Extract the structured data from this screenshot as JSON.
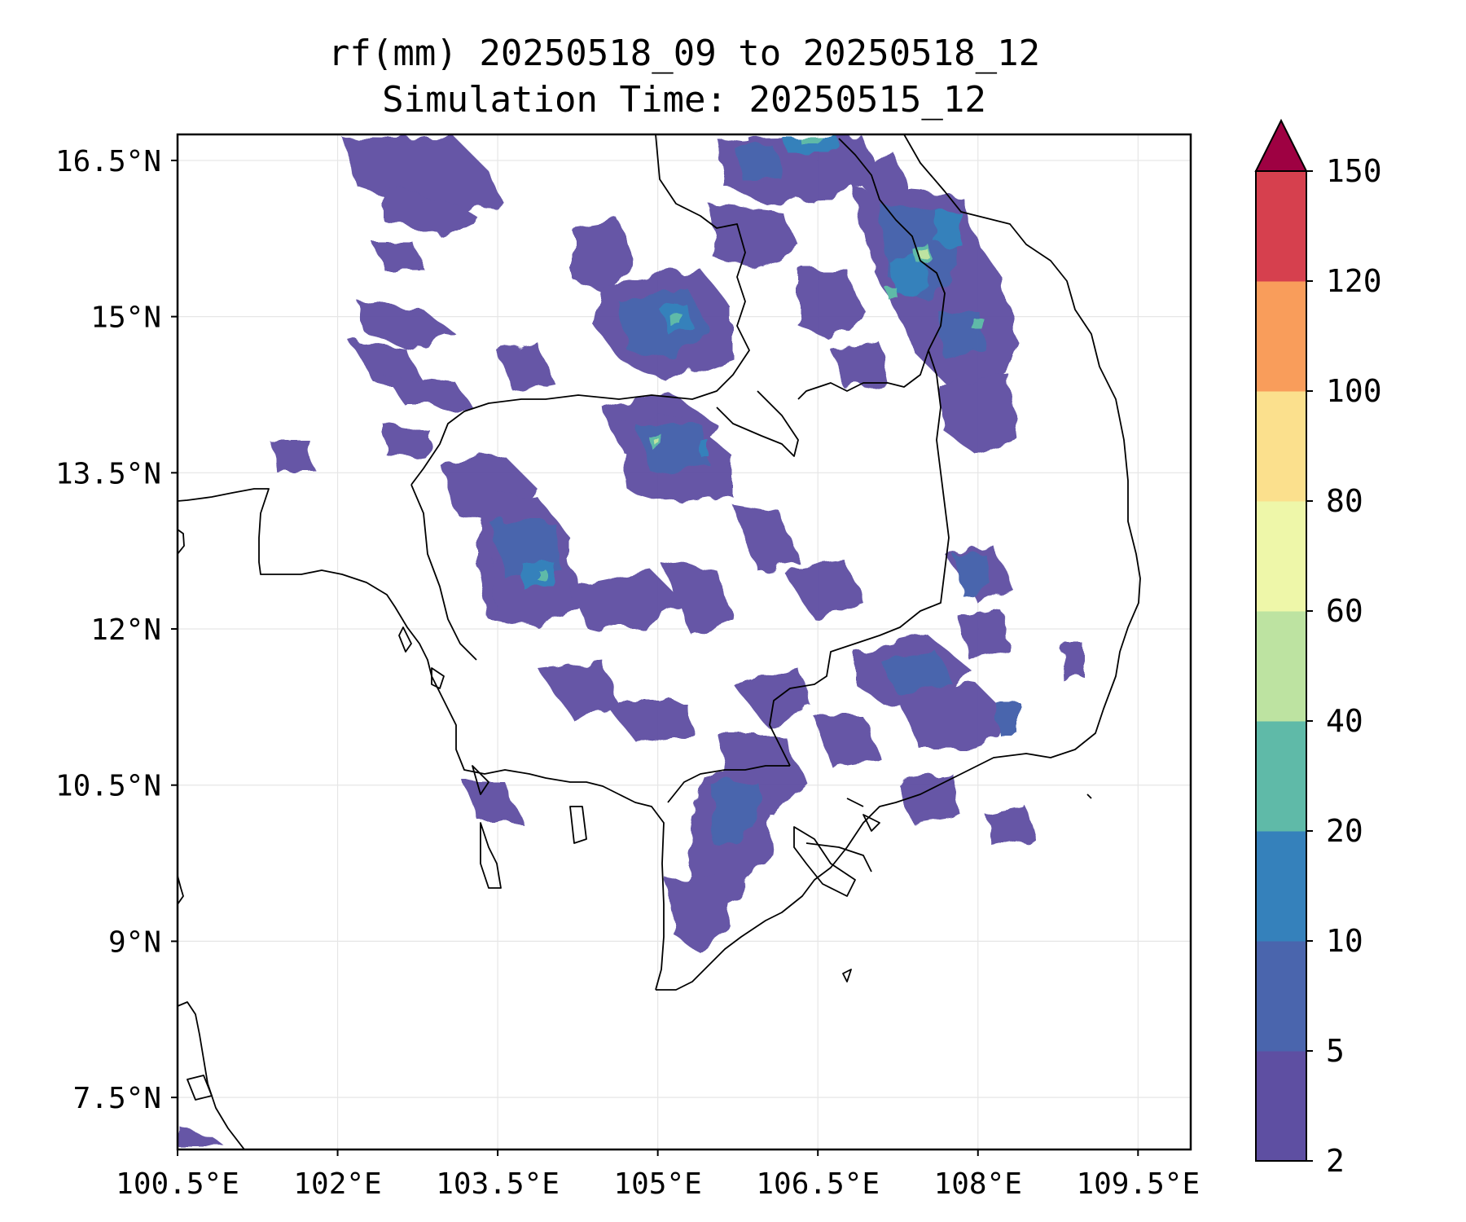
{
  "title_line1": "rf(mm) 20250518_09 to 20250518_12",
  "title_line2": "Simulation Time: 20250515_12",
  "map": {
    "extent": {
      "lon": [
        100.5,
        109.5
      ],
      "lat": [
        7.0,
        16.75
      ]
    },
    "x_ticks": [
      "100.5°E",
      "102°E",
      "103.5°E",
      "105°E",
      "106.5°E",
      "108°E",
      "109.5°E"
    ],
    "y_ticks": [
      "16.5°N",
      "15°N",
      "13.5°N",
      "12°N",
      "10.5°N",
      "9°N",
      "7.5°N"
    ],
    "grid": true
  },
  "colorbar": {
    "levels": [
      "2",
      "5",
      "10",
      "20",
      "40",
      "60",
      "80",
      "100",
      "120",
      "150"
    ],
    "colors": [
      "#5e4fa2",
      "#4a65ad",
      "#3581bb",
      "#5fbaa8",
      "#bde3a1",
      "#eef7a9",
      "#fbe08d",
      "#f99d5b",
      "#d6404e",
      "#9e0142"
    ],
    "extend": "max"
  }
}
